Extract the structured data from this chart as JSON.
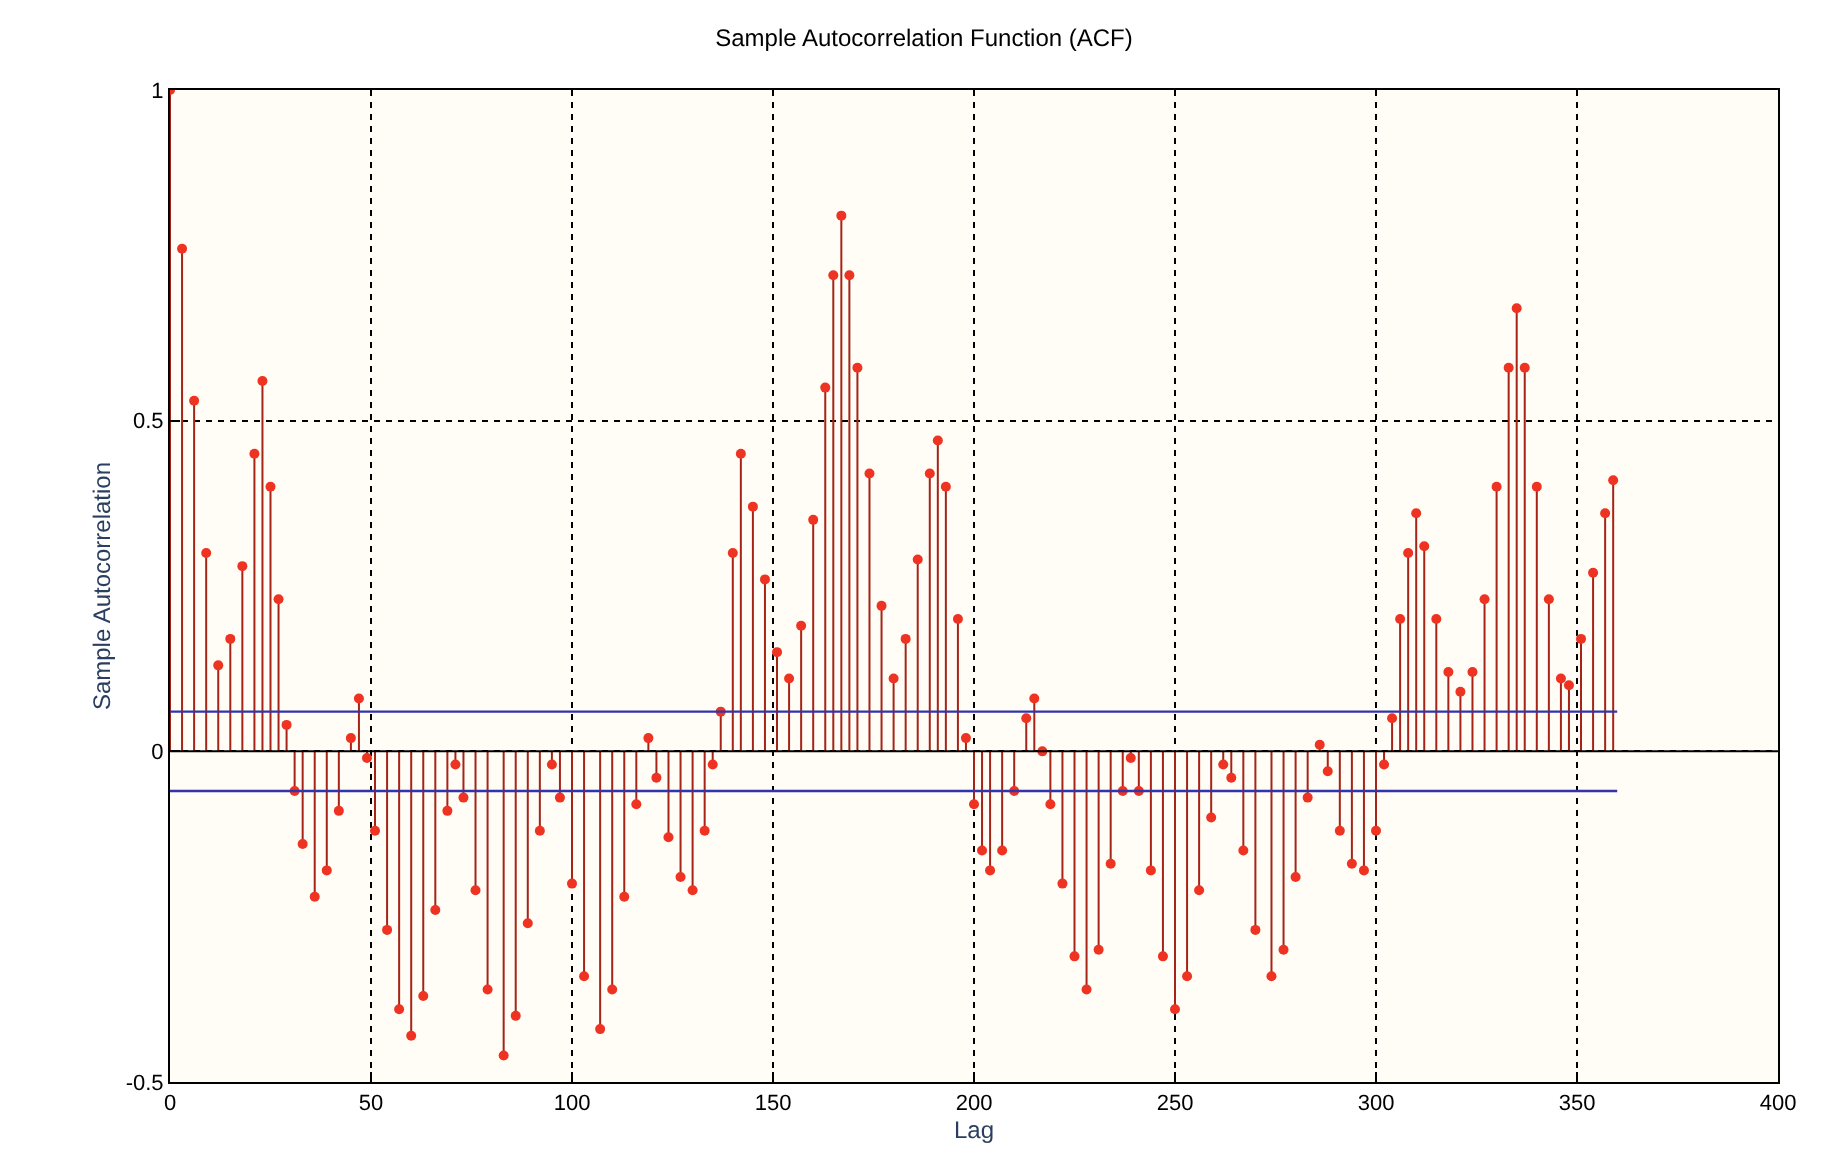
{
  "chart_data": {
    "type": "lollipop",
    "title": "Sample Autocorrelation Function (ACF)",
    "xlabel": "Lag",
    "ylabel": "Sample Autocorrelation",
    "xlim": [
      0,
      400
    ],
    "xticks": [
      0,
      50,
      100,
      150,
      200,
      250,
      300,
      350,
      400
    ],
    "ylim": [
      -0.5,
      1
    ],
    "yticks": [
      -0.5,
      0,
      0.5,
      1
    ],
    "grid": true,
    "series": [
      {
        "color": "#ee3322",
        "marker": "circle",
        "x": [
          0,
          3,
          6,
          9,
          12,
          15,
          18,
          21,
          23,
          25,
          27,
          29,
          31,
          33,
          36,
          39,
          42,
          45,
          47,
          49,
          51,
          54,
          57,
          60,
          63,
          66,
          69,
          71,
          73,
          76,
          79,
          83,
          86,
          89,
          92,
          95,
          97,
          100,
          103,
          107,
          110,
          113,
          116,
          119,
          121,
          124,
          127,
          130,
          133,
          135,
          137,
          140,
          142,
          145,
          148,
          151,
          154,
          157,
          160,
          163,
          165,
          167,
          169,
          171,
          174,
          177,
          180,
          183,
          186,
          189,
          191,
          193,
          196,
          198,
          200,
          202,
          204,
          207,
          210,
          213,
          215,
          217,
          219,
          222,
          225,
          228,
          231,
          234,
          237,
          239,
          241,
          244,
          247,
          250,
          253,
          256,
          259,
          262,
          264,
          267,
          270,
          274,
          277,
          280,
          283,
          286,
          288,
          291,
          294,
          297,
          300,
          302,
          304,
          306,
          308,
          310,
          312,
          315,
          318,
          321,
          324,
          327,
          330,
          333,
          335,
          337,
          340,
          343,
          346,
          348,
          351,
          354,
          357,
          359
        ],
        "values": [
          1.0,
          0.76,
          0.53,
          0.3,
          0.13,
          0.17,
          0.28,
          0.45,
          0.56,
          0.4,
          0.23,
          0.04,
          -0.06,
          -0.14,
          -0.22,
          -0.18,
          -0.09,
          0.02,
          0.08,
          -0.01,
          -0.12,
          -0.27,
          -0.39,
          -0.43,
          -0.37,
          -0.24,
          -0.09,
          -0.02,
          -0.07,
          -0.21,
          -0.36,
          -0.46,
          -0.4,
          -0.26,
          -0.12,
          -0.02,
          -0.07,
          -0.2,
          -0.34,
          -0.42,
          -0.36,
          -0.22,
          -0.08,
          0.02,
          -0.04,
          -0.13,
          -0.19,
          -0.21,
          -0.12,
          -0.02,
          0.06,
          0.3,
          0.45,
          0.37,
          0.26,
          0.15,
          0.11,
          0.19,
          0.35,
          0.55,
          0.72,
          0.81,
          0.72,
          0.58,
          0.42,
          0.22,
          0.11,
          0.17,
          0.29,
          0.42,
          0.47,
          0.4,
          0.2,
          0.02,
          -0.08,
          -0.15,
          -0.18,
          -0.15,
          -0.06,
          0.05,
          0.08,
          0.0,
          -0.08,
          -0.2,
          -0.31,
          -0.36,
          -0.3,
          -0.17,
          -0.06,
          -0.01,
          -0.06,
          -0.18,
          -0.31,
          -0.39,
          -0.34,
          -0.21,
          -0.1,
          -0.02,
          -0.04,
          -0.15,
          -0.27,
          -0.34,
          -0.3,
          -0.19,
          -0.07,
          0.01,
          -0.03,
          -0.12,
          -0.17,
          -0.18,
          -0.12,
          -0.02,
          0.05,
          0.2,
          0.3,
          0.36,
          0.31,
          0.2,
          0.12,
          0.09,
          0.12,
          0.23,
          0.4,
          0.58,
          0.67,
          0.58,
          0.4,
          0.23,
          0.11,
          0.1,
          0.17,
          0.27,
          0.36,
          0.41
        ]
      },
      {
        "type": "line",
        "color": "#3333aa",
        "x": [
          0,
          360
        ],
        "values": [
          0.06,
          0.06
        ]
      },
      {
        "type": "line",
        "color": "#3333aa",
        "x": [
          0,
          360
        ],
        "values": [
          -0.06,
          -0.06
        ]
      }
    ],
    "ref_lines": [
      {
        "axis": "y",
        "value": 0,
        "color": "#000000"
      }
    ]
  }
}
